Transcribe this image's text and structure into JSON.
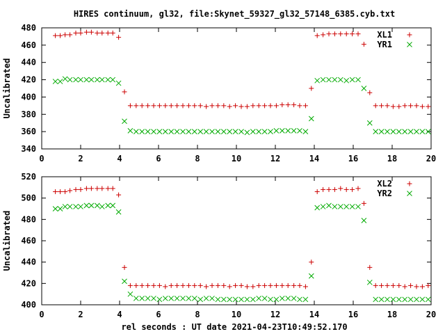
{
  "figure": {
    "title": "HIRES continuum, gl32, file:Skynet_59327_gl32_57148_6385.cyb.txt",
    "xlabel": "rel seconds : UT date 2021-04-23T10:49:52.170"
  },
  "colors": {
    "xl": "#cc0000",
    "yr": "#00aa00",
    "axis": "#000000",
    "background": "#ffffff"
  },
  "chart_data": [
    {
      "type": "scatter",
      "title": "",
      "xlabel": "",
      "ylabel": "Uncalibrated",
      "xlim": [
        0,
        20
      ],
      "ylim": [
        340,
        480
      ],
      "xticks": [
        0,
        2,
        4,
        6,
        8,
        10,
        12,
        14,
        16,
        18,
        20
      ],
      "yticks": [
        340,
        360,
        380,
        400,
        420,
        440,
        460,
        480
      ],
      "grid": false,
      "legend_position": "top-right",
      "series": [
        {
          "name": "XL1",
          "marker": "plus",
          "color": "#cc0000",
          "points": [
            [
              0.7,
              471
            ],
            [
              0.95,
              471
            ],
            [
              1.2,
              472
            ],
            [
              1.45,
              472
            ],
            [
              1.75,
              474
            ],
            [
              2.0,
              474
            ],
            [
              2.3,
              475
            ],
            [
              2.55,
              475
            ],
            [
              2.85,
              474
            ],
            [
              3.1,
              474
            ],
            [
              3.4,
              474
            ],
            [
              3.65,
              474
            ],
            [
              3.95,
              469
            ],
            [
              4.25,
              406
            ],
            [
              4.55,
              390
            ],
            [
              4.85,
              390
            ],
            [
              5.15,
              390
            ],
            [
              5.45,
              390
            ],
            [
              5.75,
              390
            ],
            [
              6.05,
              390
            ],
            [
              6.35,
              390
            ],
            [
              6.65,
              390
            ],
            [
              6.95,
              390
            ],
            [
              7.25,
              390
            ],
            [
              7.55,
              390
            ],
            [
              7.85,
              390
            ],
            [
              8.15,
              390
            ],
            [
              8.45,
              389
            ],
            [
              8.75,
              390
            ],
            [
              9.05,
              390
            ],
            [
              9.35,
              390
            ],
            [
              9.65,
              389
            ],
            [
              9.95,
              390
            ],
            [
              10.25,
              389
            ],
            [
              10.55,
              389
            ],
            [
              10.85,
              390
            ],
            [
              11.15,
              390
            ],
            [
              11.45,
              390
            ],
            [
              11.75,
              390
            ],
            [
              12.05,
              390
            ],
            [
              12.35,
              391
            ],
            [
              12.65,
              391
            ],
            [
              12.95,
              391
            ],
            [
              13.25,
              390
            ],
            [
              13.55,
              390
            ],
            [
              13.85,
              410
            ],
            [
              14.15,
              471
            ],
            [
              14.45,
              472
            ],
            [
              14.75,
              473
            ],
            [
              15.05,
              473
            ],
            [
              15.35,
              473
            ],
            [
              15.65,
              473
            ],
            [
              15.95,
              473
            ],
            [
              16.25,
              473
            ],
            [
              16.55,
              461
            ],
            [
              16.85,
              405
            ],
            [
              17.15,
              390
            ],
            [
              17.45,
              390
            ],
            [
              17.75,
              390
            ],
            [
              18.05,
              389
            ],
            [
              18.35,
              389
            ],
            [
              18.65,
              390
            ],
            [
              18.95,
              390
            ],
            [
              19.25,
              390
            ],
            [
              19.55,
              389
            ],
            [
              19.85,
              389
            ]
          ]
        },
        {
          "name": "YR1",
          "marker": "cross",
          "color": "#00aa00",
          "points": [
            [
              0.7,
              418
            ],
            [
              0.95,
              418
            ],
            [
              1.2,
              421
            ],
            [
              1.45,
              420
            ],
            [
              1.75,
              420
            ],
            [
              2.0,
              420
            ],
            [
              2.3,
              420
            ],
            [
              2.55,
              420
            ],
            [
              2.85,
              420
            ],
            [
              3.1,
              420
            ],
            [
              3.4,
              420
            ],
            [
              3.65,
              420
            ],
            [
              3.95,
              416
            ],
            [
              4.25,
              372
            ],
            [
              4.55,
              361
            ],
            [
              4.85,
              360
            ],
            [
              5.15,
              360
            ],
            [
              5.45,
              360
            ],
            [
              5.75,
              360
            ],
            [
              6.05,
              360
            ],
            [
              6.35,
              360
            ],
            [
              6.65,
              360
            ],
            [
              6.95,
              360
            ],
            [
              7.25,
              360
            ],
            [
              7.55,
              360
            ],
            [
              7.85,
              360
            ],
            [
              8.15,
              360
            ],
            [
              8.45,
              360
            ],
            [
              8.75,
              360
            ],
            [
              9.05,
              360
            ],
            [
              9.35,
              360
            ],
            [
              9.65,
              360
            ],
            [
              9.95,
              360
            ],
            [
              10.25,
              360
            ],
            [
              10.55,
              359
            ],
            [
              10.85,
              360
            ],
            [
              11.15,
              360
            ],
            [
              11.45,
              360
            ],
            [
              11.75,
              360
            ],
            [
              12.05,
              361
            ],
            [
              12.35,
              361
            ],
            [
              12.65,
              361
            ],
            [
              12.95,
              361
            ],
            [
              13.25,
              361
            ],
            [
              13.55,
              360
            ],
            [
              13.85,
              375
            ],
            [
              14.15,
              419
            ],
            [
              14.45,
              420
            ],
            [
              14.75,
              420
            ],
            [
              15.05,
              420
            ],
            [
              15.35,
              420
            ],
            [
              15.65,
              419
            ],
            [
              15.95,
              420
            ],
            [
              16.25,
              420
            ],
            [
              16.55,
              410
            ],
            [
              16.85,
              370
            ],
            [
              17.15,
              360
            ],
            [
              17.45,
              360
            ],
            [
              17.75,
              360
            ],
            [
              18.05,
              360
            ],
            [
              18.35,
              360
            ],
            [
              18.65,
              360
            ],
            [
              18.95,
              360
            ],
            [
              19.25,
              360
            ],
            [
              19.55,
              360
            ],
            [
              19.85,
              360
            ]
          ]
        }
      ]
    },
    {
      "type": "scatter",
      "title": "",
      "xlabel": "rel seconds : UT date 2021-04-23T10:49:52.170",
      "ylabel": "Uncalibrated",
      "xlim": [
        0,
        20
      ],
      "ylim": [
        400,
        520
      ],
      "xticks": [
        0,
        2,
        4,
        6,
        8,
        10,
        12,
        14,
        16,
        18,
        20
      ],
      "yticks": [
        400,
        420,
        440,
        460,
        480,
        500,
        520
      ],
      "grid": false,
      "legend_position": "top-right",
      "series": [
        {
          "name": "XL2",
          "marker": "plus",
          "color": "#cc0000",
          "points": [
            [
              0.7,
              506
            ],
            [
              0.95,
              506
            ],
            [
              1.2,
              506
            ],
            [
              1.45,
              507
            ],
            [
              1.75,
              508
            ],
            [
              2.0,
              508
            ],
            [
              2.3,
              509
            ],
            [
              2.55,
              509
            ],
            [
              2.85,
              509
            ],
            [
              3.1,
              509
            ],
            [
              3.4,
              509
            ],
            [
              3.65,
              509
            ],
            [
              3.95,
              503
            ],
            [
              4.25,
              435
            ],
            [
              4.55,
              418
            ],
            [
              4.85,
              418
            ],
            [
              5.15,
              418
            ],
            [
              5.45,
              418
            ],
            [
              5.75,
              418
            ],
            [
              6.05,
              418
            ],
            [
              6.35,
              417
            ],
            [
              6.65,
              418
            ],
            [
              6.95,
              418
            ],
            [
              7.25,
              418
            ],
            [
              7.55,
              418
            ],
            [
              7.85,
              418
            ],
            [
              8.15,
              418
            ],
            [
              8.45,
              417
            ],
            [
              8.75,
              418
            ],
            [
              9.05,
              418
            ],
            [
              9.35,
              418
            ],
            [
              9.65,
              417
            ],
            [
              9.95,
              418
            ],
            [
              10.25,
              418
            ],
            [
              10.55,
              417
            ],
            [
              10.85,
              417
            ],
            [
              11.15,
              418
            ],
            [
              11.45,
              418
            ],
            [
              11.75,
              418
            ],
            [
              12.05,
              418
            ],
            [
              12.35,
              418
            ],
            [
              12.65,
              418
            ],
            [
              12.95,
              418
            ],
            [
              13.25,
              418
            ],
            [
              13.55,
              417
            ],
            [
              13.85,
              440
            ],
            [
              14.15,
              506
            ],
            [
              14.45,
              508
            ],
            [
              14.75,
              508
            ],
            [
              15.05,
              508
            ],
            [
              15.35,
              509
            ],
            [
              15.65,
              508
            ],
            [
              15.95,
              508
            ],
            [
              16.25,
              509
            ],
            [
              16.55,
              495
            ],
            [
              16.85,
              435
            ],
            [
              17.15,
              418
            ],
            [
              17.45,
              418
            ],
            [
              17.75,
              418
            ],
            [
              18.05,
              418
            ],
            [
              18.35,
              418
            ],
            [
              18.65,
              417
            ],
            [
              18.95,
              418
            ],
            [
              19.25,
              417
            ],
            [
              19.55,
              417
            ],
            [
              19.85,
              418
            ]
          ]
        },
        {
          "name": "YR2",
          "marker": "cross",
          "color": "#00aa00",
          "points": [
            [
              0.7,
              490
            ],
            [
              0.95,
              490
            ],
            [
              1.2,
              492
            ],
            [
              1.45,
              492
            ],
            [
              1.75,
              492
            ],
            [
              2.0,
              492
            ],
            [
              2.3,
              493
            ],
            [
              2.55,
              493
            ],
            [
              2.85,
              493
            ],
            [
              3.1,
              492
            ],
            [
              3.4,
              493
            ],
            [
              3.65,
              493
            ],
            [
              3.95,
              487
            ],
            [
              4.25,
              422
            ],
            [
              4.55,
              410
            ],
            [
              4.85,
              406
            ],
            [
              5.15,
              406
            ],
            [
              5.45,
              406
            ],
            [
              5.75,
              406
            ],
            [
              6.05,
              405
            ],
            [
              6.35,
              406
            ],
            [
              6.65,
              406
            ],
            [
              6.95,
              406
            ],
            [
              7.25,
              406
            ],
            [
              7.55,
              406
            ],
            [
              7.85,
              406
            ],
            [
              8.15,
              405
            ],
            [
              8.45,
              406
            ],
            [
              8.75,
              406
            ],
            [
              9.05,
              405
            ],
            [
              9.35,
              405
            ],
            [
              9.65,
              405
            ],
            [
              9.95,
              405
            ],
            [
              10.25,
              405
            ],
            [
              10.55,
              405
            ],
            [
              10.85,
              405
            ],
            [
              11.15,
              406
            ],
            [
              11.45,
              406
            ],
            [
              11.75,
              405
            ],
            [
              12.05,
              405
            ],
            [
              12.35,
              406
            ],
            [
              12.65,
              406
            ],
            [
              12.95,
              406
            ],
            [
              13.25,
              405
            ],
            [
              13.55,
              405
            ],
            [
              13.85,
              427
            ],
            [
              14.15,
              491
            ],
            [
              14.45,
              492
            ],
            [
              14.75,
              493
            ],
            [
              15.05,
              492
            ],
            [
              15.35,
              492
            ],
            [
              15.65,
              492
            ],
            [
              15.95,
              492
            ],
            [
              16.25,
              492
            ],
            [
              16.55,
              479
            ],
            [
              16.85,
              421
            ],
            [
              17.15,
              405
            ],
            [
              17.45,
              405
            ],
            [
              17.75,
              405
            ],
            [
              18.05,
              405
            ],
            [
              18.35,
              405
            ],
            [
              18.65,
              405
            ],
            [
              18.95,
              405
            ],
            [
              19.25,
              405
            ],
            [
              19.55,
              405
            ],
            [
              19.85,
              405
            ]
          ]
        }
      ]
    }
  ]
}
